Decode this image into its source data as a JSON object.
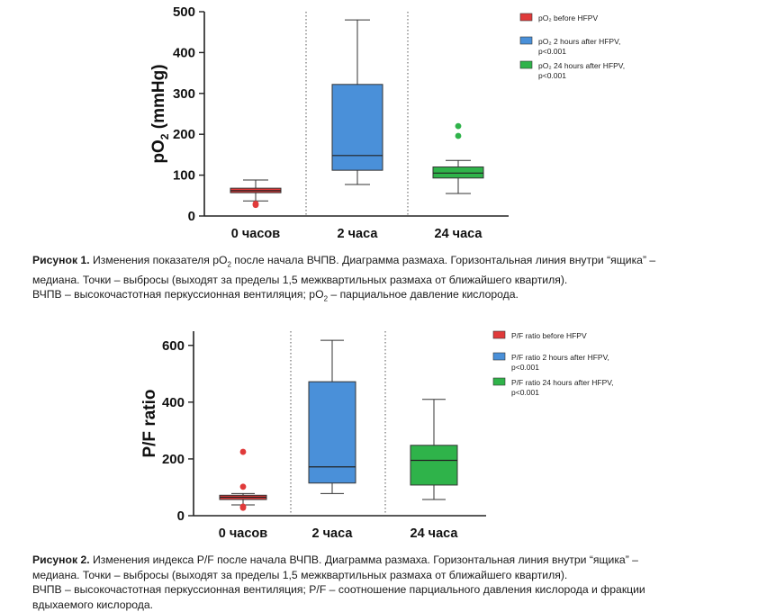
{
  "chart_data": [
    {
      "type": "box",
      "ylabel": "pO2 (mmHg)",
      "ylabel_main": "pO",
      "ylabel_sub": "2",
      "ylabel_rest": " (mmHg)",
      "ylim": [
        0,
        500
      ],
      "yticks": [
        "0",
        "100",
        "200",
        "300",
        "400",
        "500"
      ],
      "ytick_values": [
        0,
        100,
        200,
        300,
        400,
        500
      ],
      "grid": false,
      "legend_position": "right",
      "categories": [
        "0 часов",
        "2 часа",
        "24 часа"
      ],
      "series": [
        {
          "legend": [
            "pO₂ before HFPV"
          ],
          "color": "#e03a3a",
          "min": 37,
          "q1": 57,
          "median": 62,
          "q3": 68,
          "max": 88,
          "outliers": [
            30,
            27
          ]
        },
        {
          "legend": [
            "pO₂ 2 hours after HFPV,",
            "p<0.001"
          ],
          "color": "#4a90d9",
          "min": 77,
          "q1": 112,
          "median": 148,
          "q3": 322,
          "max": 480,
          "outliers": []
        },
        {
          "legend": [
            "pO₂ 24 hours after HFPV,",
            "p<0.001"
          ],
          "color": "#2fb34a",
          "min": 55,
          "q1": 93,
          "median": 105,
          "q3": 120,
          "max": 136,
          "outliers": [
            220,
            196
          ]
        }
      ]
    },
    {
      "type": "box",
      "ylabel": "P/F ratio",
      "ylim": [
        0,
        650
      ],
      "yticks": [
        "0",
        "200",
        "400",
        "600"
      ],
      "ytick_values": [
        0,
        200,
        400,
        600
      ],
      "grid": false,
      "legend_position": "right",
      "categories": [
        "0 часов",
        "2 часа",
        "24 часа"
      ],
      "series": [
        {
          "legend": [
            "P/F ratio before HFPV"
          ],
          "color": "#e03a3a",
          "min": 38,
          "q1": 57,
          "median": 65,
          "q3": 72,
          "max": 78,
          "outliers": [
            225,
            102,
            32,
            28
          ]
        },
        {
          "legend": [
            "P/F ratio 2 hours after HFPV,",
            "p<0.001"
          ],
          "color": "#4a90d9",
          "min": 78,
          "q1": 115,
          "median": 172,
          "q3": 472,
          "max": 618,
          "outliers": []
        },
        {
          "legend": [
            "P/F ratio 24 hours after HFPV,",
            "p<0.001"
          ],
          "color": "#2fb34a",
          "min": 57,
          "q1": 108,
          "median": 195,
          "q3": 248,
          "max": 410,
          "outliers": []
        }
      ]
    }
  ],
  "captions": {
    "fig1": {
      "label": "Рисунок 1.",
      "line1_a": " Изменения показателя pO",
      "line1_sub": "2",
      "line1_b": " после начала ВЧПВ. Диаграмма размаха. Горизонтальная линия внутри “ящика” –",
      "line2": "медиана. Точки – выбросы (выходят за пределы 1,5 межквартильных размаха от ближайшего квартиля).",
      "line3_a": "ВЧПВ – высокочастотная перкуссионная вентиляция; pO",
      "line3_sub": "2",
      "line3_b": " – парциальное давление кислорода."
    },
    "fig2": {
      "label": "Рисунок 2.",
      "line1": " Изменения индекса P/F после начала ВЧПВ. Диаграмма размаха. Горизонтальная линия внутри “ящика” –",
      "line2": "медиана. Точки – выбросы (выходят за пределы 1,5 межквартильных размаха от ближайшего квартиля).",
      "line3": "ВЧПВ – высокочастотная перкуссионная вентиляция; P/F – соотношение парциального давления кислорода и фракции",
      "line4": "вдыхаемого кислорода."
    }
  }
}
